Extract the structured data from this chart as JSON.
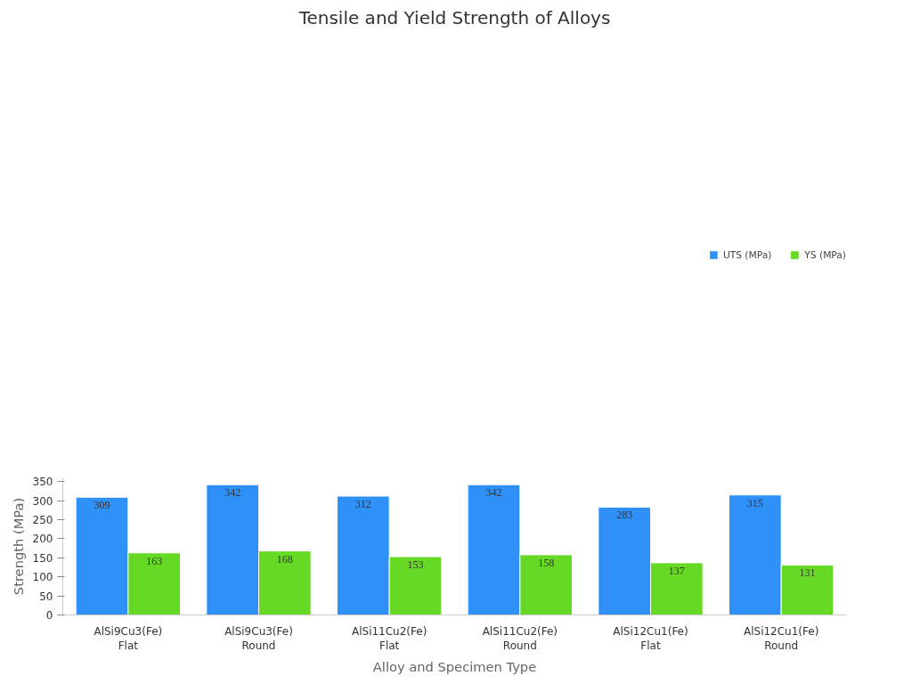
{
  "chart_data": {
    "type": "bar",
    "title": "Tensile and Yield Strength of Alloys",
    "xlabel": "Alloy and Specimen Type",
    "ylabel": "Strength (MPa)",
    "categories": [
      "AlSi9Cu3(Fe)\nFlat",
      "AlSi9Cu3(Fe)\nRound",
      "AlSi11Cu2(Fe)\nFlat",
      "AlSi11Cu2(Fe)\nRound",
      "AlSi12Cu1(Fe)\nFlat",
      "AlSi12Cu1(Fe)\nRound"
    ],
    "series": [
      {
        "name": "UTS (MPa)",
        "color": "#2f91f8",
        "values": [
          309,
          342,
          312,
          342,
          283,
          315
        ]
      },
      {
        "name": "YS (MPa)",
        "color": "#66d924",
        "values": [
          163,
          168,
          153,
          158,
          137,
          131
        ]
      }
    ],
    "ylim": [
      0,
      360
    ],
    "yticks": [
      0,
      50,
      100,
      150,
      200,
      250,
      300,
      350
    ],
    "data_labels": true,
    "grid": false,
    "legend": "top right"
  }
}
